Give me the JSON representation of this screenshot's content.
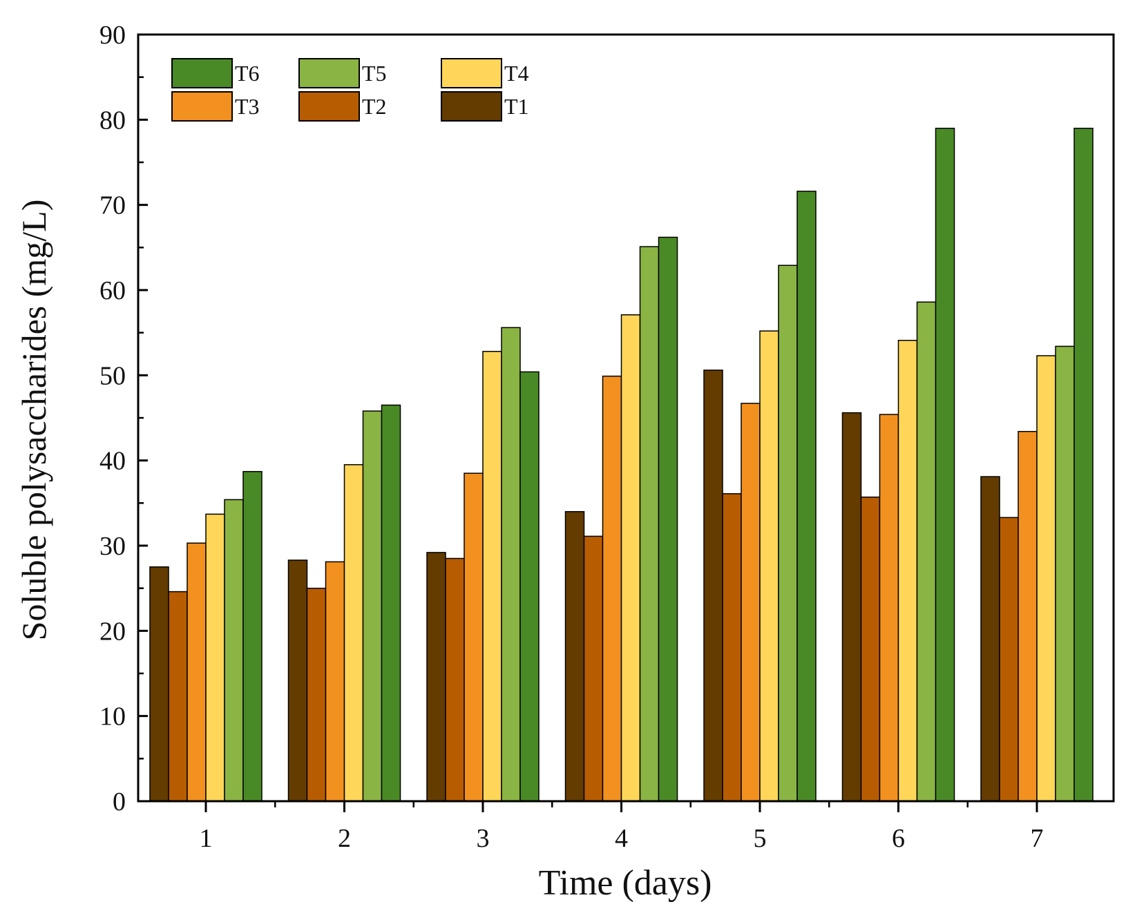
{
  "chart_data": {
    "type": "bar",
    "title": "",
    "xlabel": "Time (days)",
    "ylabel": "Soluble polysaccharides (mg/L)",
    "categories": [
      "1",
      "2",
      "3",
      "4",
      "5",
      "6",
      "7"
    ],
    "ylim": [
      0,
      90
    ],
    "yticks": [
      "0",
      "10",
      "20",
      "30",
      "40",
      "50",
      "60",
      "70",
      "80",
      "90"
    ],
    "grid": false,
    "legend_position": "top-left",
    "legend_order": [
      "T6",
      "T5",
      "T4",
      "T3",
      "T2",
      "T1"
    ],
    "series": [
      {
        "name": "T1",
        "color": "#643c00",
        "values": [
          27.5,
          28.3,
          29.2,
          34.0,
          50.6,
          45.6,
          38.1
        ]
      },
      {
        "name": "T2",
        "color": "#b85c00",
        "values": [
          24.6,
          25.0,
          28.5,
          31.1,
          36.1,
          35.7,
          33.3
        ]
      },
      {
        "name": "T3",
        "color": "#f39120",
        "values": [
          30.3,
          28.1,
          38.5,
          49.9,
          46.7,
          45.4,
          43.4
        ]
      },
      {
        "name": "T4",
        "color": "#ffd659",
        "values": [
          33.7,
          39.5,
          52.8,
          57.1,
          55.2,
          54.1,
          52.3
        ]
      },
      {
        "name": "T5",
        "color": "#8ab443",
        "values": [
          35.4,
          45.8,
          55.6,
          65.1,
          62.9,
          58.6,
          53.4
        ]
      },
      {
        "name": "T6",
        "color": "#4a8a26",
        "values": [
          38.7,
          46.5,
          50.4,
          66.2,
          71.6,
          79.0,
          79.0
        ]
      }
    ]
  }
}
